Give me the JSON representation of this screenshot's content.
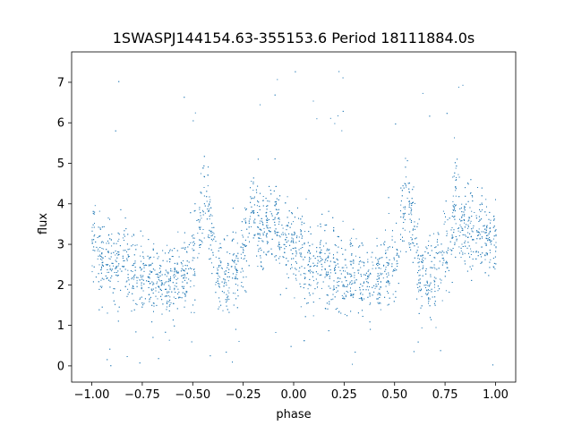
{
  "chart_data": {
    "type": "scatter",
    "title": "1SWASPJ144154.63-355153.6 Period 18111884.0s",
    "xlabel": "phase",
    "ylabel": "flux",
    "xlim": [
      -1.1,
      1.1
    ],
    "ylim": [
      -0.4,
      7.75
    ],
    "x_ticks": [
      -1.0,
      -0.75,
      -0.5,
      -0.25,
      0.0,
      0.25,
      0.5,
      0.75,
      1.0
    ],
    "x_tick_labels": [
      "−1.00",
      "−0.75",
      "−0.50",
      "−0.25",
      "0.00",
      "0.25",
      "0.50",
      "0.75",
      "1.00"
    ],
    "y_ticks": [
      0,
      1,
      2,
      3,
      4,
      5,
      6,
      7
    ],
    "y_tick_labels": [
      "0",
      "1",
      "2",
      "3",
      "4",
      "5",
      "6",
      "7"
    ],
    "grid": false,
    "legend": "none",
    "marker_color": "#1f77b4",
    "series": [
      {
        "profile": [
          {
            "x": -1.0,
            "y": 3.0,
            "spread": 0.55
          },
          {
            "x": -0.95,
            "y": 2.6,
            "spread": 0.55
          },
          {
            "x": -0.9,
            "y": 2.4,
            "spread": 0.5
          },
          {
            "x": -0.85,
            "y": 2.6,
            "spread": 0.55
          },
          {
            "x": -0.8,
            "y": 2.3,
            "spread": 0.5
          },
          {
            "x": -0.75,
            "y": 2.2,
            "spread": 0.45
          },
          {
            "x": -0.7,
            "y": 2.3,
            "spread": 0.45
          },
          {
            "x": -0.65,
            "y": 2.0,
            "spread": 0.4
          },
          {
            "x": -0.6,
            "y": 2.1,
            "spread": 0.45
          },
          {
            "x": -0.55,
            "y": 2.3,
            "spread": 0.45
          },
          {
            "x": -0.5,
            "y": 2.5,
            "spread": 0.5
          },
          {
            "x": -0.45,
            "y": 4.2,
            "spread": 0.55
          },
          {
            "x": -0.42,
            "y": 3.8,
            "spread": 0.5
          },
          {
            "x": -0.38,
            "y": 2.2,
            "spread": 0.45
          },
          {
            "x": -0.33,
            "y": 2.1,
            "spread": 0.45
          },
          {
            "x": -0.28,
            "y": 2.5,
            "spread": 0.5
          },
          {
            "x": -0.23,
            "y": 3.2,
            "spread": 0.55
          },
          {
            "x": -0.2,
            "y": 4.1,
            "spread": 0.55
          },
          {
            "x": -0.17,
            "y": 3.3,
            "spread": 0.55
          },
          {
            "x": -0.1,
            "y": 3.5,
            "spread": 0.5
          },
          {
            "x": -0.05,
            "y": 3.2,
            "spread": 0.5
          },
          {
            "x": 0.0,
            "y": 3.0,
            "spread": 0.55
          },
          {
            "x": 0.05,
            "y": 2.6,
            "spread": 0.55
          },
          {
            "x": 0.1,
            "y": 2.4,
            "spread": 0.5
          },
          {
            "x": 0.15,
            "y": 2.6,
            "spread": 0.55
          },
          {
            "x": 0.2,
            "y": 2.3,
            "spread": 0.5
          },
          {
            "x": 0.25,
            "y": 2.2,
            "spread": 0.45
          },
          {
            "x": 0.3,
            "y": 2.3,
            "spread": 0.45
          },
          {
            "x": 0.35,
            "y": 2.0,
            "spread": 0.4
          },
          {
            "x": 0.4,
            "y": 2.1,
            "spread": 0.45
          },
          {
            "x": 0.45,
            "y": 2.3,
            "spread": 0.45
          },
          {
            "x": 0.5,
            "y": 2.5,
            "spread": 0.5
          },
          {
            "x": 0.55,
            "y": 4.2,
            "spread": 0.55
          },
          {
            "x": 0.58,
            "y": 3.8,
            "spread": 0.5
          },
          {
            "x": 0.62,
            "y": 2.2,
            "spread": 0.45
          },
          {
            "x": 0.67,
            "y": 2.1,
            "spread": 0.45
          },
          {
            "x": 0.72,
            "y": 2.5,
            "spread": 0.5
          },
          {
            "x": 0.77,
            "y": 3.2,
            "spread": 0.55
          },
          {
            "x": 0.8,
            "y": 4.1,
            "spread": 0.55
          },
          {
            "x": 0.83,
            "y": 3.3,
            "spread": 0.55
          },
          {
            "x": 0.9,
            "y": 3.5,
            "spread": 0.5
          },
          {
            "x": 0.95,
            "y": 3.2,
            "spread": 0.5
          },
          {
            "x": 1.0,
            "y": 3.0,
            "spread": 0.55
          }
        ],
        "outlier_ranges": {
          "low": [
            0.0,
            0.9
          ],
          "high": [
            5.5,
            7.4
          ]
        }
      }
    ]
  }
}
